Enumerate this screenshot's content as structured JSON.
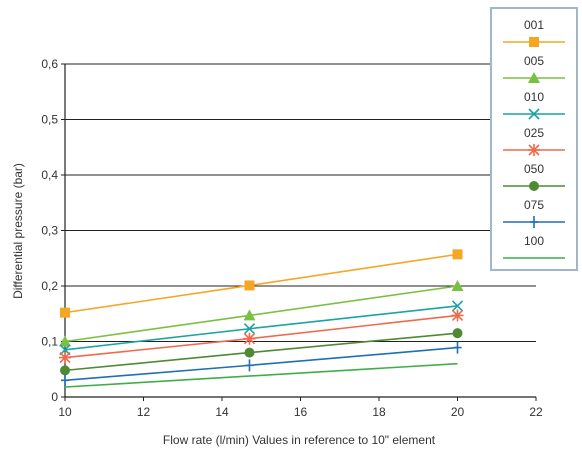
{
  "chart_data": {
    "type": "line",
    "xlabel": "Flow rate (l/min) Values in reference to 10\" element",
    "ylabel": "Differential pressure (bar)",
    "xlim": [
      10,
      22
    ],
    "ylim": [
      0,
      0.6
    ],
    "xticks": [
      10,
      12,
      14,
      16,
      18,
      20,
      22
    ],
    "xtick_labels": [
      "10",
      "12",
      "14",
      "16",
      "18",
      "20",
      "22"
    ],
    "yticks": [
      0,
      0.1,
      0.2,
      0.3,
      0.4,
      0.5,
      0.6
    ],
    "ytick_labels": [
      "0",
      "0,1",
      "0,2",
      "0,3",
      "0,4",
      "0,5",
      "0,6"
    ],
    "grid": "horizontal",
    "legend_position": "top-right",
    "series": [
      {
        "name": "001",
        "color": "#f5a623",
        "marker": "square",
        "x": [
          10,
          14.7,
          20
        ],
        "y": [
          0.152,
          0.201,
          0.257
        ]
      },
      {
        "name": "005",
        "color": "#7ac143",
        "marker": "triangle",
        "x": [
          10,
          14.7,
          20
        ],
        "y": [
          0.1,
          0.147,
          0.2
        ]
      },
      {
        "name": "010",
        "color": "#1aa3a3",
        "marker": "x",
        "x": [
          10,
          14.7,
          20
        ],
        "y": [
          0.085,
          0.123,
          0.164
        ]
      },
      {
        "name": "025",
        "color": "#ef6a4c",
        "marker": "asterisk",
        "x": [
          10,
          14.7,
          20
        ],
        "y": [
          0.071,
          0.105,
          0.147
        ]
      },
      {
        "name": "050",
        "color": "#4e8a34",
        "marker": "circle",
        "x": [
          10,
          14.7,
          20
        ],
        "y": [
          0.048,
          0.08,
          0.115
        ]
      },
      {
        "name": "075",
        "color": "#1f6fb5",
        "marker": "plus",
        "x": [
          10,
          14.7,
          20
        ],
        "y": [
          0.03,
          0.057,
          0.089
        ]
      },
      {
        "name": "100",
        "color": "#3fae49",
        "marker": "none",
        "x": [
          10,
          20
        ],
        "y": [
          0.018,
          0.06
        ]
      }
    ]
  }
}
